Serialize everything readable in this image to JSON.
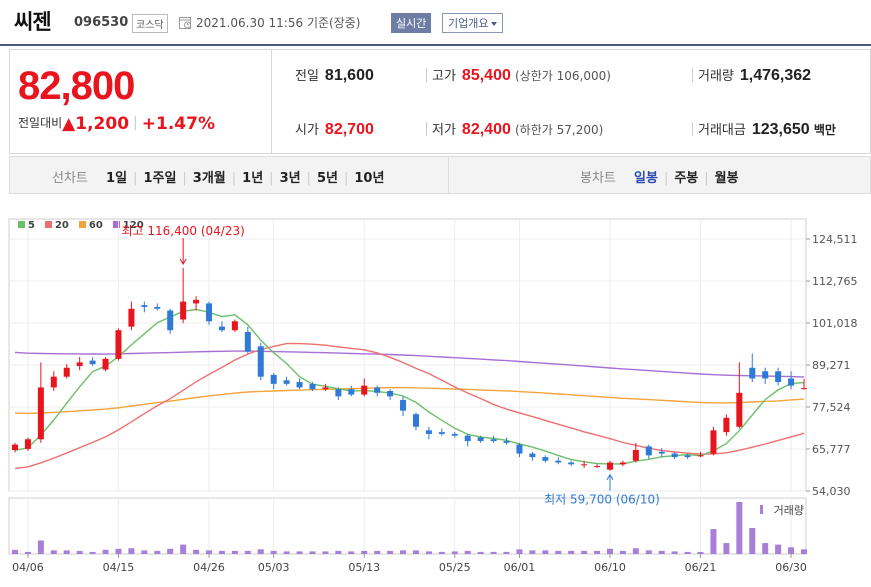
{
  "header": {
    "name": "씨젠",
    "code": "096530",
    "market": "코스닥",
    "datetime": "2021.06.30 11:56",
    "basis": "기준(장중)",
    "realtime_label": "실시간",
    "company_info_label": "기업개요"
  },
  "quote": {
    "price": "82,800",
    "change_label": "전일대비",
    "change": "1,200",
    "change_pct": "+1.47%",
    "prev_close_label": "전일",
    "prev_close": "81,600",
    "high_label": "고가",
    "high": "85,400",
    "upper_limit": "(상한가 106,000)",
    "volume_label": "거래량",
    "volume": "1,476,362",
    "open_label": "시가",
    "open": "82,700",
    "low_label": "저가",
    "low": "82,400",
    "lower_limit": "(하한가 57,200)",
    "amount_label": "거래대금",
    "amount": "123,650",
    "amount_unit": "백만"
  },
  "tabs": {
    "line_title": "선차트",
    "line_periods": [
      "1일",
      "1주일",
      "3개월",
      "1년",
      "3년",
      "5년",
      "10년"
    ],
    "candle_title": "봉차트",
    "candle_periods": [
      "일봉",
      "주봉",
      "월봉"
    ],
    "candle_active": "일봉"
  },
  "colors": {
    "up": "#e8141e",
    "down": "#2f7ad6",
    "ma5": "#6cc06a",
    "ma20": "#ee6f6f",
    "ma60": "#f3a43c",
    "ma120": "#a66fd6"
  },
  "chart_data": {
    "type": "candlestick",
    "legend": [
      {
        "name": "5",
        "color": "#6cc06a"
      },
      {
        "name": "20",
        "color": "#ee6f6f"
      },
      {
        "name": "60",
        "color": "#f3a43c"
      },
      {
        "name": "120",
        "color": "#a66fd6"
      }
    ],
    "y_ticks": [
      124511,
      112765,
      101018,
      89271,
      77524,
      65777,
      54030
    ],
    "y_tick_labels": [
      "124,511",
      "112,765",
      "101,018",
      "89,271",
      "77,524",
      "65,777",
      "54,030"
    ],
    "ylim": [
      54030,
      124511
    ],
    "x_tick_labels": [
      {
        "label": "04/06",
        "index": 1
      },
      {
        "label": "04/15",
        "index": 8
      },
      {
        "label": "04/26",
        "index": 15
      },
      {
        "label": "05/03",
        "index": 20
      },
      {
        "label": "05/13",
        "index": 27
      },
      {
        "label": "05/25",
        "index": 34
      },
      {
        "label": "06/01",
        "index": 39
      },
      {
        "label": "06/10",
        "index": 46
      },
      {
        "label": "06/21",
        "index": 53
      },
      {
        "label": "06/30",
        "index": 60
      }
    ],
    "volume_label": "거래량",
    "high_annotation": {
      "text": "최고 116,400 (04/23)",
      "index": 13,
      "value": 116400
    },
    "low_annotation": {
      "text": "최저 59,700 (06/10)",
      "index": 46,
      "value": 59700
    },
    "candles": [
      {
        "o": 65500,
        "h": 67500,
        "l": 64800,
        "c": 67000
      },
      {
        "o": 65800,
        "h": 69000,
        "l": 65200,
        "c": 68500
      },
      {
        "o": 68500,
        "h": 90000,
        "l": 67500,
        "c": 83000
      },
      {
        "o": 83000,
        "h": 87500,
        "l": 82000,
        "c": 86000
      },
      {
        "o": 86000,
        "h": 89500,
        "l": 85500,
        "c": 88500
      },
      {
        "o": 89000,
        "h": 91500,
        "l": 87800,
        "c": 90000
      },
      {
        "o": 90500,
        "h": 91500,
        "l": 89000,
        "c": 89500
      },
      {
        "o": 88000,
        "h": 91500,
        "l": 87500,
        "c": 91000
      },
      {
        "o": 91000,
        "h": 99500,
        "l": 90500,
        "c": 99000
      },
      {
        "o": 100000,
        "h": 107000,
        "l": 99000,
        "c": 105000
      },
      {
        "o": 106000,
        "h": 107000,
        "l": 104000,
        "c": 105500
      },
      {
        "o": 105500,
        "h": 106500,
        "l": 104500,
        "c": 105000
      },
      {
        "o": 104500,
        "h": 105000,
        "l": 98000,
        "c": 99000
      },
      {
        "o": 102000,
        "h": 116400,
        "l": 101000,
        "c": 107000
      },
      {
        "o": 106500,
        "h": 108500,
        "l": 104500,
        "c": 107500
      },
      {
        "o": 106500,
        "h": 107000,
        "l": 100500,
        "c": 101500
      },
      {
        "o": 100000,
        "h": 101500,
        "l": 98500,
        "c": 99000
      },
      {
        "o": 99000,
        "h": 102000,
        "l": 98500,
        "c": 101500
      },
      {
        "o": 98500,
        "h": 100000,
        "l": 92500,
        "c": 93000
      },
      {
        "o": 94500,
        "h": 95500,
        "l": 85000,
        "c": 86000
      },
      {
        "o": 86500,
        "h": 87000,
        "l": 82500,
        "c": 84000
      },
      {
        "o": 85000,
        "h": 86000,
        "l": 83500,
        "c": 84000
      },
      {
        "o": 84500,
        "h": 85500,
        "l": 82500,
        "c": 83000
      },
      {
        "o": 84000,
        "h": 84500,
        "l": 82000,
        "c": 82500
      },
      {
        "o": 82500,
        "h": 84000,
        "l": 82000,
        "c": 83000
      },
      {
        "o": 82500,
        "h": 83000,
        "l": 79500,
        "c": 80500
      },
      {
        "o": 82500,
        "h": 83500,
        "l": 80500,
        "c": 81000
      },
      {
        "o": 81000,
        "h": 85500,
        "l": 80500,
        "c": 83500
      },
      {
        "o": 83000,
        "h": 83500,
        "l": 80500,
        "c": 81500
      },
      {
        "o": 82000,
        "h": 82500,
        "l": 79500,
        "c": 80500
      },
      {
        "o": 79500,
        "h": 80500,
        "l": 75000,
        "c": 76500
      },
      {
        "o": 75500,
        "h": 76000,
        "l": 71000,
        "c": 72000
      },
      {
        "o": 71000,
        "h": 72000,
        "l": 68500,
        "c": 70000
      },
      {
        "o": 70500,
        "h": 71500,
        "l": 69500,
        "c": 70000
      },
      {
        "o": 70000,
        "h": 70500,
        "l": 69000,
        "c": 69500
      },
      {
        "o": 69500,
        "h": 70000,
        "l": 66500,
        "c": 68000
      },
      {
        "o": 69000,
        "h": 69500,
        "l": 67500,
        "c": 68000
      },
      {
        "o": 68500,
        "h": 69500,
        "l": 67500,
        "c": 68000
      },
      {
        "o": 68000,
        "h": 69000,
        "l": 67000,
        "c": 67500
      },
      {
        "o": 67000,
        "h": 67500,
        "l": 63500,
        "c": 64500
      },
      {
        "o": 64500,
        "h": 65000,
        "l": 62500,
        "c": 63500
      },
      {
        "o": 63500,
        "h": 64000,
        "l": 62000,
        "c": 62500
      },
      {
        "o": 62500,
        "h": 63500,
        "l": 61500,
        "c": 62000
      },
      {
        "o": 62000,
        "h": 62500,
        "l": 61000,
        "c": 61500
      },
      {
        "o": 61500,
        "h": 62500,
        "l": 60500,
        "c": 61500
      },
      {
        "o": 61000,
        "h": 61500,
        "l": 60500,
        "c": 61000
      },
      {
        "o": 60000,
        "h": 62500,
        "l": 59700,
        "c": 62000
      },
      {
        "o": 61500,
        "h": 62500,
        "l": 61000,
        "c": 62000
      },
      {
        "o": 62500,
        "h": 67500,
        "l": 62000,
        "c": 65500
      },
      {
        "o": 66500,
        "h": 67000,
        "l": 63000,
        "c": 64000
      },
      {
        "o": 65000,
        "h": 66000,
        "l": 63500,
        "c": 64500
      },
      {
        "o": 64500,
        "h": 65000,
        "l": 63000,
        "c": 63500
      },
      {
        "o": 64000,
        "h": 64500,
        "l": 63000,
        "c": 63500
      },
      {
        "o": 64000,
        "h": 65000,
        "l": 63500,
        "c": 64000
      },
      {
        "o": 64500,
        "h": 72000,
        "l": 64000,
        "c": 71000
      },
      {
        "o": 70500,
        "h": 75500,
        "l": 69500,
        "c": 74500
      },
      {
        "o": 72000,
        "h": 90000,
        "l": 71500,
        "c": 81500
      },
      {
        "o": 88500,
        "h": 92500,
        "l": 84500,
        "c": 85500
      },
      {
        "o": 87500,
        "h": 88500,
        "l": 84000,
        "c": 85500
      },
      {
        "o": 87500,
        "h": 88500,
        "l": 83500,
        "c": 84500
      },
      {
        "o": 85500,
        "h": 87500,
        "l": 82500,
        "c": 83500
      },
      {
        "o": 82700,
        "h": 85400,
        "l": 82400,
        "c": 82800
      }
    ],
    "volumes": [
      0.8,
      0.4,
      2.6,
      0.7,
      0.7,
      0.6,
      0.4,
      0.8,
      1.0,
      1.1,
      0.7,
      0.6,
      1.0,
      1.8,
      0.8,
      0.7,
      0.6,
      0.6,
      0.6,
      0.9,
      0.6,
      0.5,
      0.5,
      0.5,
      0.5,
      0.6,
      0.5,
      0.6,
      0.6,
      0.6,
      0.7,
      0.7,
      0.5,
      0.4,
      0.5,
      0.6,
      0.4,
      0.4,
      0.4,
      0.9,
      0.7,
      0.7,
      0.6,
      0.6,
      0.6,
      0.6,
      1.0,
      0.6,
      1.1,
      0.7,
      0.6,
      0.5,
      0.4,
      0.4,
      4.8,
      2.1,
      10.0,
      5.0,
      2.1,
      1.8,
      1.3,
      0.9
    ],
    "volume_unit": "relative"
  }
}
